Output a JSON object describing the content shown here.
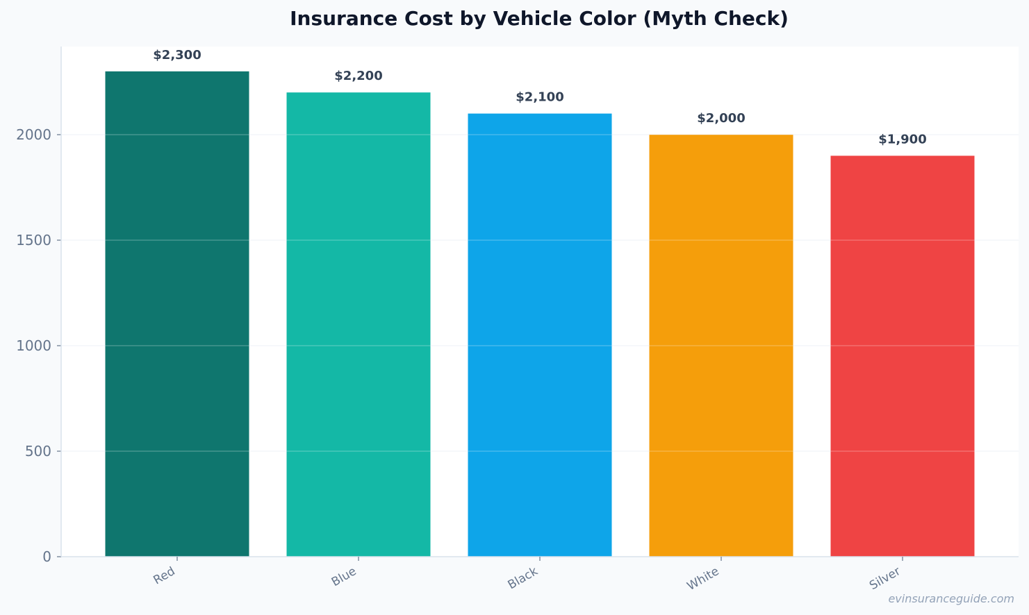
{
  "chart_data": {
    "type": "bar",
    "title": "Insurance Cost by Vehicle Color (Myth Check)",
    "xlabel": "",
    "ylabel": "",
    "categories": [
      "Red",
      "Blue",
      "Black",
      "White",
      "Silver"
    ],
    "values": [
      2300,
      2200,
      2100,
      2000,
      1900
    ],
    "value_labels": [
      "$2,300",
      "$2,200",
      "$2,100",
      "$2,000",
      "$1,900"
    ],
    "colors": [
      "#0f766e",
      "#14b8a6",
      "#0ea5e9",
      "#f59e0b",
      "#ef4444"
    ],
    "ylim": [
      0,
      2420
    ],
    "yticks": [
      0,
      500,
      1000,
      1500,
      2000
    ],
    "grid": true,
    "legend": "none"
  },
  "watermark": "evinsuranceguide.com",
  "colors": {
    "page_background": "#f8fafc",
    "plot_background": "#ffffff",
    "grid": "#eef2f7",
    "axis": "#d9e2ec"
  }
}
